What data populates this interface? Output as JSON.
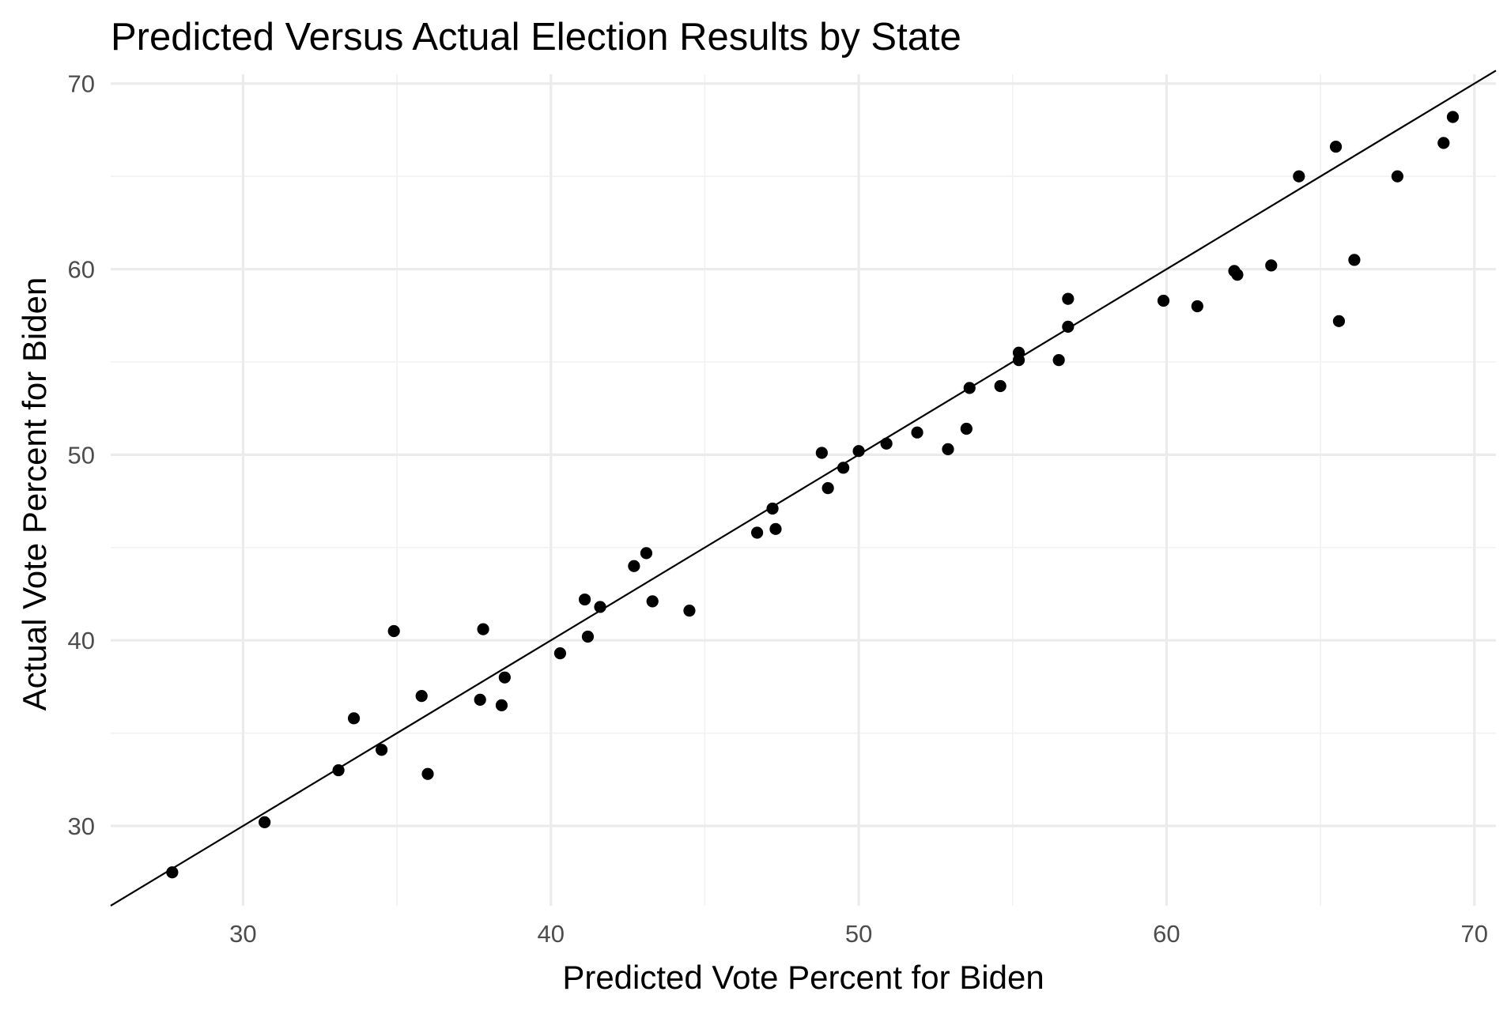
{
  "chart_data": {
    "type": "scatter",
    "title": "Predicted Versus Actual Election Results by State",
    "xlabel": "Predicted Vote Percent for Biden",
    "ylabel": "Actual Vote Percent for Biden",
    "xlim": [
      25.7,
      70.7
    ],
    "ylim": [
      25.7,
      70.5
    ],
    "x_ticks": [
      30,
      40,
      50,
      60,
      70
    ],
    "y_ticks": [
      30,
      40,
      50,
      60,
      70
    ],
    "x_minor": [
      35,
      45,
      55,
      65
    ],
    "y_minor": [
      35,
      45,
      55,
      65
    ],
    "reference_line": {
      "type": "y = x",
      "from": 25.7,
      "to": 70.7
    },
    "grid": true,
    "legend": "none",
    "series": [
      {
        "name": "States",
        "points": [
          [
            27.7,
            27.5
          ],
          [
            30.7,
            30.2
          ],
          [
            33.1,
            33.0
          ],
          [
            33.6,
            35.8
          ],
          [
            34.5,
            34.1
          ],
          [
            34.9,
            40.5
          ],
          [
            35.8,
            37.0
          ],
          [
            36.0,
            32.8
          ],
          [
            37.7,
            36.8
          ],
          [
            37.8,
            40.6
          ],
          [
            38.4,
            36.5
          ],
          [
            38.5,
            38.0
          ],
          [
            40.3,
            39.3
          ],
          [
            41.1,
            42.2
          ],
          [
            41.2,
            40.2
          ],
          [
            41.6,
            41.8
          ],
          [
            42.7,
            44.0
          ],
          [
            43.1,
            44.7
          ],
          [
            43.3,
            42.1
          ],
          [
            44.5,
            41.6
          ],
          [
            46.7,
            45.8
          ],
          [
            47.2,
            47.1
          ],
          [
            47.3,
            46.0
          ],
          [
            48.8,
            50.1
          ],
          [
            49.0,
            48.2
          ],
          [
            49.5,
            49.3
          ],
          [
            50.0,
            50.2
          ],
          [
            50.9,
            50.6
          ],
          [
            51.9,
            51.2
          ],
          [
            52.9,
            50.3
          ],
          [
            53.5,
            51.4
          ],
          [
            53.6,
            53.6
          ],
          [
            54.6,
            53.7
          ],
          [
            55.2,
            55.1
          ],
          [
            55.2,
            55.5
          ],
          [
            56.5,
            55.1
          ],
          [
            56.8,
            56.9
          ],
          [
            56.8,
            58.4
          ],
          [
            59.9,
            58.3
          ],
          [
            61.0,
            58.0
          ],
          [
            62.2,
            59.9
          ],
          [
            62.3,
            59.7
          ],
          [
            63.4,
            60.2
          ],
          [
            64.3,
            65.0
          ],
          [
            65.5,
            66.6
          ],
          [
            65.6,
            57.2
          ],
          [
            66.1,
            60.5
          ],
          [
            67.5,
            65.0
          ],
          [
            69.0,
            66.8
          ],
          [
            69.3,
            68.2
          ]
        ]
      }
    ]
  }
}
